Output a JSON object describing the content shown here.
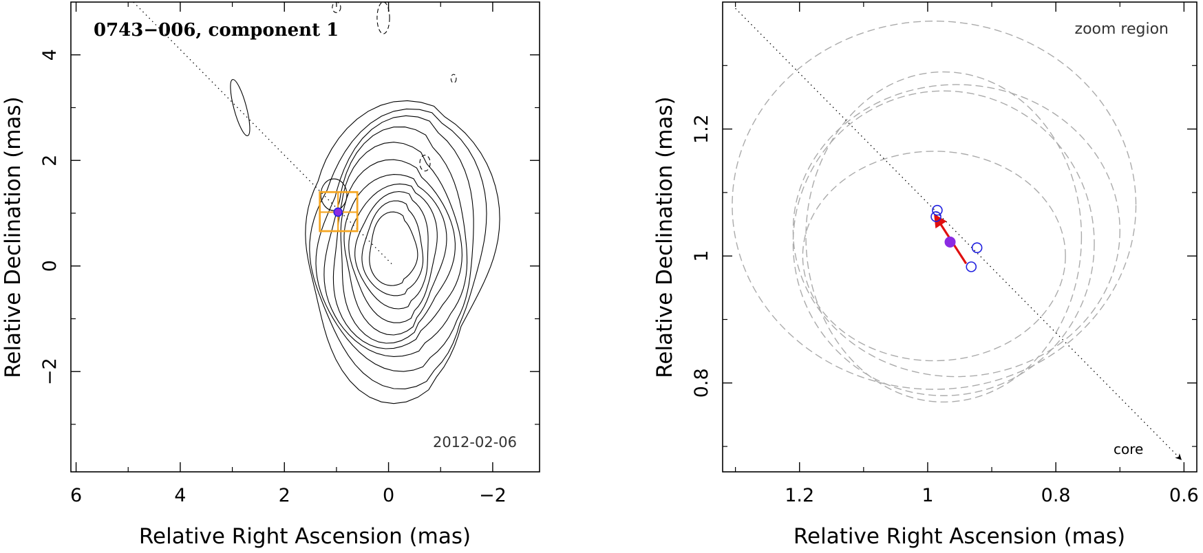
{
  "chart_data": [
    {
      "type": "scatter",
      "panel": "left",
      "title": "0743−006, component 1",
      "epoch_label": "2012-02-06",
      "xlabel": "Relative Right Ascension (mas)",
      "ylabel": "Relative Declination (mas)",
      "xlim": [
        6.1,
        -2.9
      ],
      "ylim": [
        -3.9,
        5.0
      ],
      "x_ticks": [
        6,
        4,
        2,
        0,
        -2
      ],
      "x_tick_labels": [
        "6",
        "4",
        "2",
        "0",
        "−2"
      ],
      "y_ticks": [
        -2,
        0,
        2,
        4
      ],
      "y_tick_labels": [
        "−2",
        "0",
        "2",
        "4"
      ],
      "jet_axis": [
        [
          4.9,
          5.0
        ],
        [
          -0.1,
          0.0
        ]
      ],
      "component": {
        "x": 0.97,
        "y": 1.02
      },
      "zoom_box": {
        "x_range": [
          1.32,
          0.6
        ],
        "y_range": [
          0.66,
          1.4
        ]
      },
      "contour_levels": 11,
      "contour_center": {
        "x": -0.1,
        "y": 0.3
      },
      "color_component": "#8a2be2",
      "color_box": "#f5a623"
    },
    {
      "type": "scatter",
      "panel": "right",
      "annotation": "zoom region",
      "core_label": "core",
      "xlabel": "Relative Right Ascension (mas)",
      "ylabel": "Relative Declination (mas)",
      "xlim": [
        1.32,
        0.58
      ],
      "ylim": [
        0.66,
        1.4
      ],
      "x_ticks": [
        1.2,
        1.0,
        0.8,
        0.6
      ],
      "x_tick_labels": [
        "1.2",
        "1",
        "0.8",
        "0.6"
      ],
      "y_ticks": [
        0.8,
        1.0,
        1.2
      ],
      "y_tick_labels": [
        "0.8",
        "1",
        "1.2"
      ],
      "jet_axis": [
        [
          1.3,
          1.39
        ],
        [
          0.605,
          0.68
        ]
      ],
      "mean_position": {
        "x": 0.965,
        "y": 1.022
      },
      "epoch_positions": [
        {
          "x": 0.985,
          "y": 1.072
        },
        {
          "x": 0.987,
          "y": 1.062
        },
        {
          "x": 0.923,
          "y": 1.013
        },
        {
          "x": 0.932,
          "y": 0.983
        }
      ],
      "motion_vector": {
        "from": [
          0.94,
          0.988
        ],
        "to": [
          0.988,
          1.063
        ]
      },
      "error_ellipses": [
        {
          "cx": 0.99,
          "cy": 1.08,
          "rx": 0.315,
          "ry": 0.29
        },
        {
          "cx": 0.99,
          "cy": 1.0,
          "rx": 0.205,
          "ry": 0.165
        },
        {
          "cx": 0.975,
          "cy": 1.02,
          "rx": 0.235,
          "ry": 0.24
        },
        {
          "cx": 0.955,
          "cy": 1.04,
          "rx": 0.255,
          "ry": 0.23
        },
        {
          "cx": 0.975,
          "cy": 1.03,
          "rx": 0.215,
          "ry": 0.26
        }
      ],
      "color_mean": "#8a2be2",
      "color_epochs": "#1f1fe0",
      "color_vector": "#e01010",
      "color_ellipses": "#aaaaaa"
    }
  ]
}
